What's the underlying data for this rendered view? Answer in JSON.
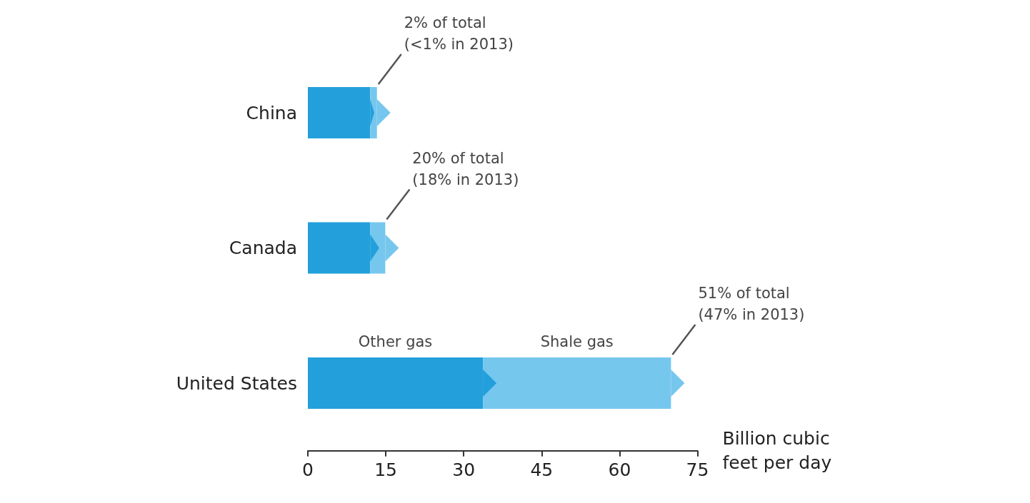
{
  "chart_data": {
    "type": "bar",
    "orientation": "horizontal",
    "stacked": true,
    "categories": [
      "China",
      "Canada",
      "United States"
    ],
    "series": [
      {
        "name": "Other gas",
        "color": "#23a0db",
        "values": [
          12,
          12,
          33.7
        ]
      },
      {
        "name": "Shale gas",
        "color": "#76c7ee",
        "values": [
          1.3,
          2.9,
          36.2
        ]
      }
    ],
    "xlabel": "Billion cubic\nfeet per day",
    "xlim": [
      0,
      75
    ],
    "xticks": [
      0,
      15,
      30,
      45,
      60,
      75
    ],
    "annotations": [
      "2% of total\n(<1% in 2013)",
      "20% of total\n(18% in 2013)",
      "51% of total\n(47% in 2013)"
    ]
  }
}
